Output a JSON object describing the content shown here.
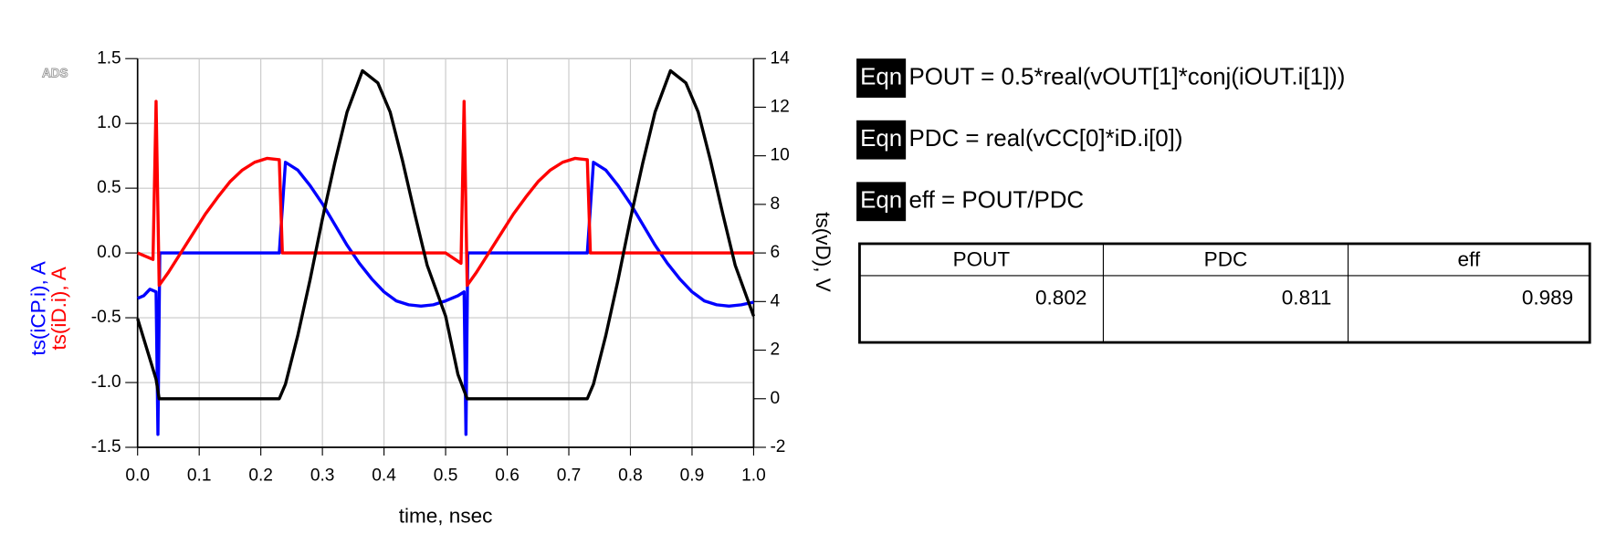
{
  "chart_data": {
    "type": "line",
    "logo": "ADS",
    "xlabel": "time, nsec",
    "xlim": [
      0,
      1
    ],
    "ylim": [
      -1.5,
      1.5
    ],
    "y2lim": [
      -2,
      14
    ],
    "grid": true,
    "xticks": [
      {
        "value": 0,
        "label": "0.0"
      },
      0.1,
      0.2,
      0.3,
      0.4,
      0.5,
      0.6,
      0.7,
      0.8,
      0.9,
      {
        "value": 1,
        "label": "1.0"
      }
    ],
    "yticks": [
      1.5,
      {
        "value": 1,
        "label": "1.0"
      },
      0.5,
      {
        "value": 0,
        "label": "0.0"
      },
      -0.5,
      {
        "value": -1,
        "label": "-1.0"
      },
      -1.5
    ],
    "y2ticks": [
      14,
      12,
      10,
      8,
      6,
      4,
      2,
      0,
      -2
    ],
    "series": [
      {
        "name": "ts(iCP.i), A",
        "color": "#0000ff",
        "x": [
          0,
          0.01,
          0.02,
          0.03,
          0.033,
          0.036,
          0.23,
          0.24,
          0.26,
          0.28,
          0.3,
          0.32,
          0.34,
          0.36,
          0.38,
          0.4,
          0.42,
          0.44,
          0.46,
          0.48,
          0.5,
          0.52,
          0.53,
          0.533,
          0.536,
          0.73,
          0.74,
          0.76,
          0.78,
          0.8,
          0.82,
          0.84,
          0.86,
          0.88,
          0.9,
          0.92,
          0.94,
          0.96,
          0.98,
          1.0
        ],
        "values": [
          -0.35,
          -0.33,
          -0.28,
          -0.3,
          -1.4,
          0,
          0,
          0.7,
          0.64,
          0.52,
          0.38,
          0.22,
          0.06,
          -0.08,
          -0.2,
          -0.3,
          -0.37,
          -0.4,
          -0.41,
          -0.4,
          -0.37,
          -0.33,
          -0.3,
          -1.4,
          0,
          0,
          0.7,
          0.64,
          0.52,
          0.38,
          0.22,
          0.06,
          -0.08,
          -0.2,
          -0.3,
          -0.37,
          -0.4,
          -0.41,
          -0.4,
          -0.38
        ]
      },
      {
        "name": "ts(iD.i), A",
        "color": "#ff0000",
        "x": [
          0,
          0.025,
          0.03,
          0.035,
          0.05,
          0.07,
          0.09,
          0.11,
          0.13,
          0.15,
          0.17,
          0.19,
          0.21,
          0.23,
          0.235,
          0.5,
          0.525,
          0.53,
          0.535,
          0.55,
          0.57,
          0.59,
          0.61,
          0.63,
          0.65,
          0.67,
          0.69,
          0.71,
          0.73,
          0.735,
          1.0
        ],
        "values": [
          0,
          -0.05,
          1.17,
          -0.25,
          -0.15,
          0,
          0.15,
          0.3,
          0.43,
          0.55,
          0.64,
          0.7,
          0.73,
          0.72,
          0,
          0,
          -0.08,
          1.17,
          -0.25,
          -0.15,
          0,
          0.15,
          0.3,
          0.43,
          0.55,
          0.64,
          0.7,
          0.73,
          0.72,
          0,
          0
        ]
      },
      {
        "name": "ts(vD), V",
        "color": "#000000",
        "axis": "y2",
        "x": [
          0,
          0.03,
          0.035,
          0.23,
          0.24,
          0.26,
          0.28,
          0.3,
          0.32,
          0.34,
          0.365,
          0.39,
          0.41,
          0.43,
          0.45,
          0.47,
          0.49,
          0.5,
          0.52,
          0.535,
          0.73,
          0.74,
          0.76,
          0.78,
          0.8,
          0.82,
          0.84,
          0.865,
          0.89,
          0.91,
          0.93,
          0.95,
          0.97,
          0.99,
          1.0
        ],
        "values": [
          3.3,
          0.8,
          0,
          0,
          0.6,
          2.6,
          4.9,
          7.4,
          9.7,
          11.8,
          13.5,
          13.0,
          11.8,
          9.8,
          7.6,
          5.5,
          4.1,
          3.4,
          1.0,
          0,
          0,
          0.6,
          2.6,
          4.9,
          7.4,
          9.7,
          11.8,
          13.5,
          13.0,
          11.8,
          9.8,
          7.6,
          5.5,
          4.1,
          3.4
        ]
      }
    ]
  },
  "equations": [
    {
      "tag": "Eqn",
      "text": "POUT = 0.5*real(vOUT[1]*conj(iOUT.i[1]))"
    },
    {
      "tag": "Eqn",
      "text": "PDC = real(vCC[0]*iD.i[0])"
    },
    {
      "tag": "Eqn",
      "text": "eff = POUT/PDC"
    }
  ],
  "table": {
    "headers": [
      "POUT",
      "PDC",
      "eff"
    ],
    "rows": [
      [
        0.802,
        0.811,
        0.989
      ]
    ]
  }
}
